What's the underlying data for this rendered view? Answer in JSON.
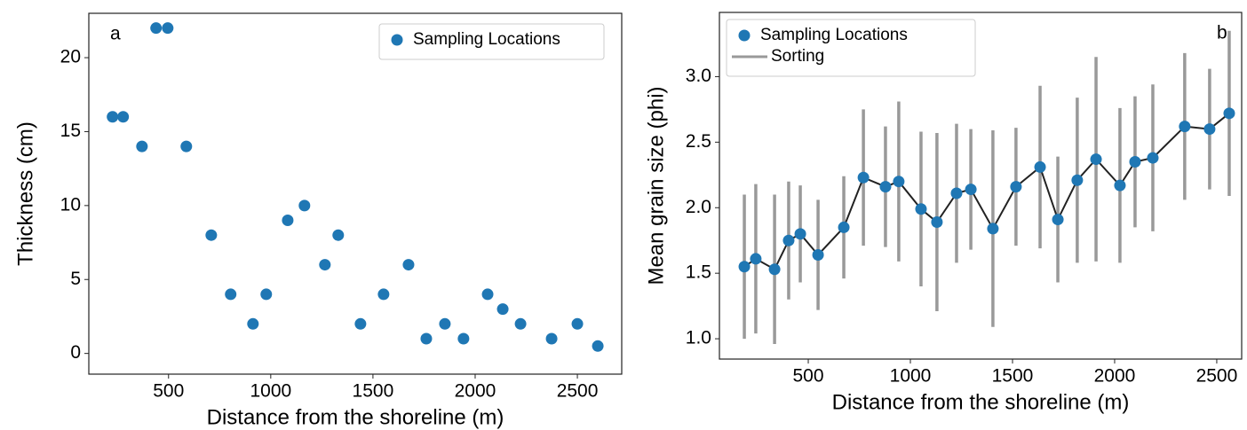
{
  "chart_data": [
    {
      "type": "scatter",
      "annotation": "a",
      "xlabel": "Distance from the shoreline (m)",
      "ylabel": "Thickness (cm)",
      "x": [
        226,
        278,
        370,
        439,
        496,
        587,
        709,
        804,
        913,
        978,
        1083,
        1165,
        1265,
        1330,
        1439,
        1552,
        1674,
        1761,
        1852,
        1943,
        2061,
        2135,
        2222,
        2374,
        2500,
        2600
      ],
      "series": [
        {
          "name": "Sampling Locations",
          "color": "#1f77b4",
          "values": [
            16,
            16,
            14,
            22,
            22,
            14,
            8,
            4,
            2,
            4,
            9,
            10,
            6,
            8,
            2,
            4,
            6,
            1,
            2,
            1,
            4,
            3,
            2,
            1,
            2,
            0.5
          ]
        }
      ],
      "xlim": [
        110,
        2717
      ],
      "ylim": [
        -1.4,
        23
      ],
      "xticks": [
        500,
        1000,
        1500,
        2000,
        2500
      ],
      "yticks": [
        0,
        5,
        10,
        15,
        20
      ],
      "legend": "upper right"
    },
    {
      "type": "line",
      "annotation": "b",
      "xlabel": "Distance from the shoreline (m)",
      "ylabel": "Mean grain size (phi)",
      "x": [
        187,
        243,
        335,
        404,
        461,
        548,
        674,
        770,
        878,
        943,
        1052,
        1130,
        1226,
        1296,
        1404,
        1517,
        1635,
        1722,
        1817,
        1909,
        2026,
        2100,
        2187,
        2343,
        2465,
        2561
      ],
      "series": [
        {
          "name": "Sampling Locations",
          "color": "#1f77b4",
          "line_color": "#222222",
          "values": [
            1.55,
            1.61,
            1.53,
            1.75,
            1.8,
            1.64,
            1.85,
            2.23,
            2.16,
            2.2,
            1.99,
            1.89,
            2.11,
            2.14,
            1.84,
            2.16,
            2.31,
            1.91,
            2.21,
            2.37,
            2.17,
            2.35,
            2.38,
            2.62,
            2.6,
            2.72
          ]
        },
        {
          "name": "Sorting",
          "color": "#999999",
          "role": "error",
          "values": [
            0.55,
            0.57,
            0.57,
            0.45,
            0.37,
            0.42,
            0.39,
            0.52,
            0.46,
            0.61,
            0.59,
            0.68,
            0.53,
            0.46,
            0.75,
            0.45,
            0.62,
            0.48,
            0.63,
            0.78,
            0.59,
            0.5,
            0.56,
            0.56,
            0.46,
            0.63
          ]
        }
      ],
      "xlim": [
        65,
        2622
      ],
      "ylim": [
        0.845,
        3.49
      ],
      "xticks": [
        500,
        1000,
        1500,
        2000,
        2500
      ],
      "yticks": [
        {
          "value": 1,
          "label": "1.0"
        },
        1.5,
        {
          "value": 2,
          "label": "2.0"
        },
        2.5,
        {
          "value": 3,
          "label": "3.0"
        }
      ],
      "legend": "upper left"
    }
  ]
}
